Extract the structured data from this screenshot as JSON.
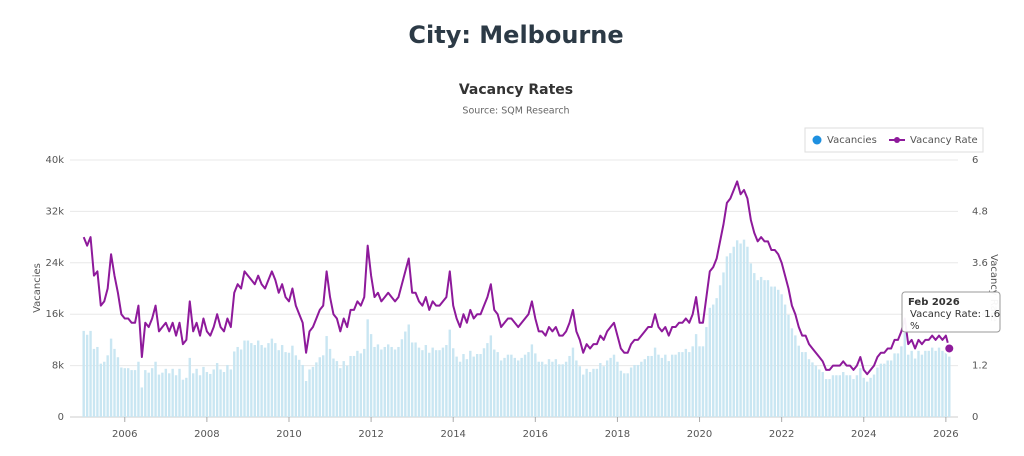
{
  "page_title": "City: Melbourne",
  "chart_data": {
    "type": "bar-line",
    "title": "Vacancy Rates",
    "subtitle": "Source: SQM Research",
    "x": [
      "2005-01",
      "2005-02",
      "2005-03",
      "2005-04",
      "2005-05",
      "2005-06",
      "2005-07",
      "2005-08",
      "2005-09",
      "2005-10",
      "2005-11",
      "2005-12",
      "2006-01",
      "2006-02",
      "2006-03",
      "2006-04",
      "2006-05",
      "2006-06",
      "2006-07",
      "2006-08",
      "2006-09",
      "2006-10",
      "2006-11",
      "2006-12",
      "2007-01",
      "2007-02",
      "2007-03",
      "2007-04",
      "2007-05",
      "2007-06",
      "2007-07",
      "2007-08",
      "2007-09",
      "2007-10",
      "2007-11",
      "2007-12",
      "2008-01",
      "2008-02",
      "2008-03",
      "2008-04",
      "2008-05",
      "2008-06",
      "2008-07",
      "2008-08",
      "2008-09",
      "2008-10",
      "2008-11",
      "2008-12",
      "2009-01",
      "2009-02",
      "2009-03",
      "2009-04",
      "2009-05",
      "2009-06",
      "2009-07",
      "2009-08",
      "2009-09",
      "2009-10",
      "2009-11",
      "2009-12",
      "2010-01",
      "2010-02",
      "2010-03",
      "2010-04",
      "2010-05",
      "2010-06",
      "2010-07",
      "2010-08",
      "2010-09",
      "2010-10",
      "2010-11",
      "2010-12",
      "2011-01",
      "2011-02",
      "2011-03",
      "2011-04",
      "2011-05",
      "2011-06",
      "2011-07",
      "2011-08",
      "2011-09",
      "2011-10",
      "2011-11",
      "2011-12",
      "2012-01",
      "2012-02",
      "2012-03",
      "2012-04",
      "2012-05",
      "2012-06",
      "2012-07",
      "2012-08",
      "2012-09",
      "2012-10",
      "2012-11",
      "2012-12",
      "2013-01",
      "2013-02",
      "2013-03",
      "2013-04",
      "2013-05",
      "2013-06",
      "2013-07",
      "2013-08",
      "2013-09",
      "2013-10",
      "2013-11",
      "2013-12",
      "2014-01",
      "2014-02",
      "2014-03",
      "2014-04",
      "2014-05",
      "2014-06",
      "2014-07",
      "2014-08",
      "2014-09",
      "2014-10",
      "2014-11",
      "2014-12",
      "2015-01",
      "2015-02",
      "2015-03",
      "2015-04",
      "2015-05",
      "2015-06",
      "2015-07",
      "2015-08",
      "2015-09",
      "2015-10",
      "2015-11",
      "2015-12",
      "2016-01",
      "2016-02",
      "2016-03",
      "2016-04",
      "2016-05",
      "2016-06",
      "2016-07",
      "2016-08",
      "2016-09",
      "2016-10",
      "2016-11",
      "2016-12",
      "2017-01",
      "2017-02",
      "2017-03",
      "2017-04",
      "2017-05",
      "2017-06",
      "2017-07",
      "2017-08",
      "2017-09",
      "2017-10",
      "2017-11",
      "2017-12",
      "2018-01",
      "2018-02",
      "2018-03",
      "2018-04",
      "2018-05",
      "2018-06",
      "2018-07",
      "2018-08",
      "2018-09",
      "2018-10",
      "2018-11",
      "2018-12",
      "2019-01",
      "2019-02",
      "2019-03",
      "2019-04",
      "2019-05",
      "2019-06",
      "2019-07",
      "2019-08",
      "2019-09",
      "2019-10",
      "2019-11",
      "2019-12",
      "2020-01",
      "2020-02",
      "2020-03",
      "2020-04",
      "2020-05",
      "2020-06",
      "2020-07",
      "2020-08",
      "2020-09",
      "2020-10",
      "2020-11",
      "2020-12",
      "2021-01",
      "2021-02",
      "2021-03",
      "2021-04",
      "2021-05",
      "2021-06",
      "2021-07",
      "2021-08",
      "2021-09",
      "2021-10",
      "2021-11",
      "2021-12",
      "2022-01",
      "2022-02",
      "2022-03",
      "2022-04",
      "2022-05",
      "2022-06",
      "2022-07",
      "2022-08",
      "2022-09",
      "2022-10",
      "2022-11",
      "2022-12",
      "2023-01",
      "2023-02",
      "2023-03",
      "2023-04",
      "2023-05",
      "2023-06",
      "2023-07",
      "2023-08",
      "2023-09",
      "2023-10",
      "2023-11",
      "2023-12",
      "2024-01",
      "2024-02",
      "2024-03",
      "2024-04",
      "2024-05",
      "2024-06",
      "2024-07",
      "2024-08",
      "2024-09",
      "2024-10",
      "2024-11",
      "2024-12",
      "2025-01",
      "2025-02",
      "2025-03",
      "2025-04",
      "2025-05",
      "2025-06",
      "2025-07",
      "2025-08",
      "2025-09",
      "2025-10",
      "2025-11",
      "2025-12",
      "2026-01",
      "2026-02"
    ],
    "series": [
      {
        "name": "Vacancies",
        "color": "#c9e6f2",
        "values": [
          13400,
          12800,
          13400,
          10600,
          10900,
          8300,
          8600,
          9600,
          12200,
          10600,
          9300,
          7700,
          7600,
          7600,
          7300,
          7300,
          8600,
          4600,
          7300,
          6900,
          7600,
          8600,
          6600,
          6900,
          7500,
          6800,
          7500,
          6500,
          7500,
          5800,
          6100,
          9200,
          6800,
          7500,
          6500,
          7800,
          7000,
          6700,
          7400,
          8400,
          7400,
          7000,
          8100,
          7400,
          10200,
          10900,
          10500,
          11900,
          11900,
          11500,
          11200,
          11900,
          11200,
          10800,
          11500,
          12200,
          11500,
          10400,
          11200,
          10100,
          10000,
          11100,
          9600,
          8900,
          8100,
          5600,
          7400,
          7800,
          8500,
          9300,
          9600,
          12600,
          10600,
          9100,
          8700,
          7600,
          8700,
          8000,
          9500,
          9500,
          10300,
          9900,
          10600,
          15200,
          12900,
          10900,
          11300,
          10500,
          10900,
          11300,
          10900,
          10500,
          10900,
          12100,
          13300,
          14400,
          11600,
          11600,
          10800,
          10400,
          11200,
          10000,
          10800,
          10400,
          10400,
          10800,
          11200,
          13600,
          10700,
          9400,
          8600,
          9800,
          9000,
          10300,
          9400,
          9800,
          9800,
          10700,
          11500,
          12700,
          10500,
          10100,
          8800,
          9200,
          9700,
          9700,
          9200,
          8800,
          9200,
          9700,
          10100,
          11300,
          9900,
          8600,
          8600,
          8200,
          9000,
          8600,
          9000,
          8200,
          8200,
          8600,
          9500,
          10800,
          8800,
          7900,
          6600,
          7500,
          7000,
          7500,
          7500,
          8400,
          7900,
          8800,
          9200,
          9700,
          8600,
          7200,
          6800,
          6800,
          7700,
          8100,
          8100,
          8600,
          9000,
          9500,
          9500,
          10800,
          9700,
          9200,
          9700,
          8700,
          9700,
          9700,
          10100,
          10100,
          10600,
          10100,
          11000,
          12900,
          11000,
          11000,
          14000,
          17000,
          17500,
          18500,
          20500,
          22500,
          25000,
          25500,
          26500,
          27500,
          27000,
          27600,
          26500,
          23900,
          22400,
          21300,
          21800,
          21300,
          21300,
          20300,
          20300,
          19800,
          19100,
          17500,
          15900,
          13800,
          12700,
          11100,
          10100,
          10100,
          9000,
          8500,
          8000,
          7400,
          7000,
          5900,
          5900,
          6500,
          6500,
          6500,
          7000,
          6500,
          6500,
          5900,
          6500,
          7600,
          6100,
          5500,
          6100,
          6600,
          7700,
          8300,
          8300,
          8800,
          8800,
          9900,
          9900,
          11000,
          13100,
          9700,
          10300,
          9100,
          10300,
          9700,
          10300,
          10300,
          10800,
          10300,
          10800,
          10300,
          11200,
          9400
        ]
      },
      {
        "name": "Vacancy Rate",
        "color": "#8e1a9b",
        "axis": "y2",
        "values": [
          4.2,
          4.0,
          4.2,
          3.3,
          3.4,
          2.6,
          2.7,
          3.0,
          3.8,
          3.3,
          2.9,
          2.4,
          2.3,
          2.3,
          2.2,
          2.2,
          2.6,
          1.4,
          2.2,
          2.1,
          2.3,
          2.6,
          2.0,
          2.1,
          2.2,
          2.0,
          2.2,
          1.9,
          2.2,
          1.7,
          1.8,
          2.7,
          2.0,
          2.2,
          1.9,
          2.3,
          2.0,
          1.9,
          2.1,
          2.4,
          2.1,
          2.0,
          2.3,
          2.1,
          2.9,
          3.1,
          3.0,
          3.4,
          3.3,
          3.2,
          3.1,
          3.3,
          3.1,
          3.0,
          3.2,
          3.4,
          3.2,
          2.9,
          3.1,
          2.8,
          2.7,
          3.0,
          2.6,
          2.4,
          2.2,
          1.5,
          2.0,
          2.1,
          2.3,
          2.5,
          2.6,
          3.4,
          2.8,
          2.4,
          2.3,
          2.0,
          2.3,
          2.1,
          2.5,
          2.5,
          2.7,
          2.6,
          2.8,
          4.0,
          3.3,
          2.8,
          2.9,
          2.7,
          2.8,
          2.9,
          2.8,
          2.7,
          2.8,
          3.1,
          3.4,
          3.7,
          2.9,
          2.9,
          2.7,
          2.6,
          2.8,
          2.5,
          2.7,
          2.6,
          2.6,
          2.7,
          2.8,
          3.4,
          2.6,
          2.3,
          2.1,
          2.4,
          2.2,
          2.5,
          2.3,
          2.4,
          2.4,
          2.6,
          2.8,
          3.1,
          2.5,
          2.4,
          2.1,
          2.2,
          2.3,
          2.3,
          2.2,
          2.1,
          2.2,
          2.3,
          2.4,
          2.7,
          2.3,
          2.0,
          2.0,
          1.9,
          2.1,
          2.0,
          2.1,
          1.9,
          1.9,
          2.0,
          2.2,
          2.5,
          2.0,
          1.8,
          1.5,
          1.7,
          1.6,
          1.7,
          1.7,
          1.9,
          1.8,
          2.0,
          2.1,
          2.2,
          1.9,
          1.6,
          1.5,
          1.5,
          1.7,
          1.8,
          1.8,
          1.9,
          2.0,
          2.1,
          2.1,
          2.4,
          2.1,
          2.0,
          2.1,
          1.9,
          2.1,
          2.1,
          2.2,
          2.2,
          2.3,
          2.2,
          2.4,
          2.8,
          2.2,
          2.2,
          2.8,
          3.4,
          3.5,
          3.7,
          4.1,
          4.5,
          5.0,
          5.1,
          5.3,
          5.5,
          5.2,
          5.3,
          5.1,
          4.6,
          4.3,
          4.1,
          4.2,
          4.1,
          4.1,
          3.9,
          3.9,
          3.8,
          3.6,
          3.3,
          3.0,
          2.6,
          2.4,
          2.1,
          1.9,
          1.9,
          1.7,
          1.6,
          1.5,
          1.4,
          1.3,
          1.1,
          1.1,
          1.2,
          1.2,
          1.2,
          1.3,
          1.2,
          1.2,
          1.1,
          1.2,
          1.4,
          1.1,
          1.0,
          1.1,
          1.2,
          1.4,
          1.5,
          1.5,
          1.6,
          1.6,
          1.8,
          1.8,
          2.0,
          2.3,
          1.7,
          1.8,
          1.6,
          1.8,
          1.7,
          1.8,
          1.8,
          1.9,
          1.8,
          1.9,
          1.8,
          1.9,
          1.6
        ]
      }
    ],
    "y_label": "Vacancies",
    "y2_label": "Vacancy Rate",
    "ylim": [
      0,
      40000
    ],
    "yticks": [
      0,
      {
        "value": 8000,
        "label": "8k"
      },
      {
        "value": 16000,
        "label": "16k"
      },
      {
        "value": 24000,
        "label": "24k"
      },
      {
        "value": 32000,
        "label": "32k"
      },
      {
        "value": 40000,
        "label": "40k"
      }
    ],
    "y2lim": [
      0,
      6
    ],
    "y2ticks": [
      0,
      1.2,
      2.4,
      3.6,
      4.8,
      6
    ],
    "xticks": [
      2006,
      2008,
      2010,
      2012,
      2014,
      2016,
      2018,
      2020,
      2022,
      2024,
      2026
    ],
    "grid": true,
    "legend": "top-right",
    "tooltip": {
      "title": "Feb 2026",
      "text": "Vacancy Rate: 1.6 %"
    }
  }
}
